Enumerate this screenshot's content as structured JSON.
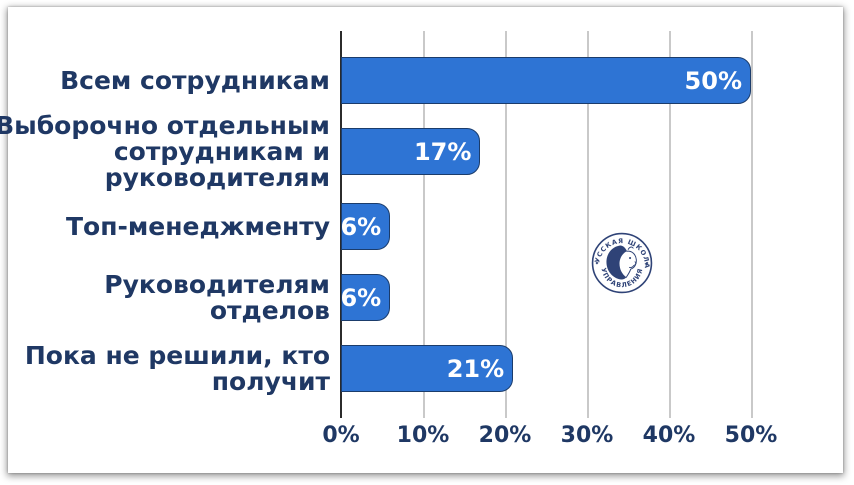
{
  "chart_data": {
    "type": "bar",
    "orientation": "horizontal",
    "categories": [
      "Всем сотрудникам",
      "Выборочно отдельным сотрудникам и руководителям",
      "Топ-менеджменту",
      "Руководителям отделов",
      "Пока не решили, кто получит"
    ],
    "category_lines": [
      [
        "Всем сотрудникам"
      ],
      [
        "Выборочно отдельным",
        "сотрудникам и",
        "руководителям"
      ],
      [
        "Топ-менеджменту"
      ],
      [
        "Руководителям",
        "отделов"
      ],
      [
        "Пока не решили, кто",
        "получит"
      ]
    ],
    "values": [
      50,
      17,
      6,
      6,
      21
    ],
    "value_labels": [
      "50%",
      "17%",
      "6%",
      "6%",
      "21%"
    ],
    "x_tick_labels": [
      "0%",
      "10%",
      "20%",
      "30%",
      "40%",
      "50%"
    ],
    "x_tick_values": [
      0,
      10,
      20,
      30,
      40,
      50
    ],
    "xlim": [
      0,
      50
    ],
    "grid": true,
    "legend_position": "none",
    "title": "",
    "xlabel": "",
    "ylabel": ""
  },
  "colors": {
    "bar_fill": "#2E74D4",
    "bar_border": "#1B3C6B",
    "category_label": "#1F3864",
    "value_label": "#FFFFFF",
    "axis_label": "#1F3864",
    "gridline": "#C9C9C9",
    "axis_line": "#2B2B2B",
    "watermark": "#2F4377"
  },
  "watermark": {
    "text_top": "РУССКАЯ ШКОЛА",
    "text_bottom": "УПРАВЛЕНИЯ"
  }
}
